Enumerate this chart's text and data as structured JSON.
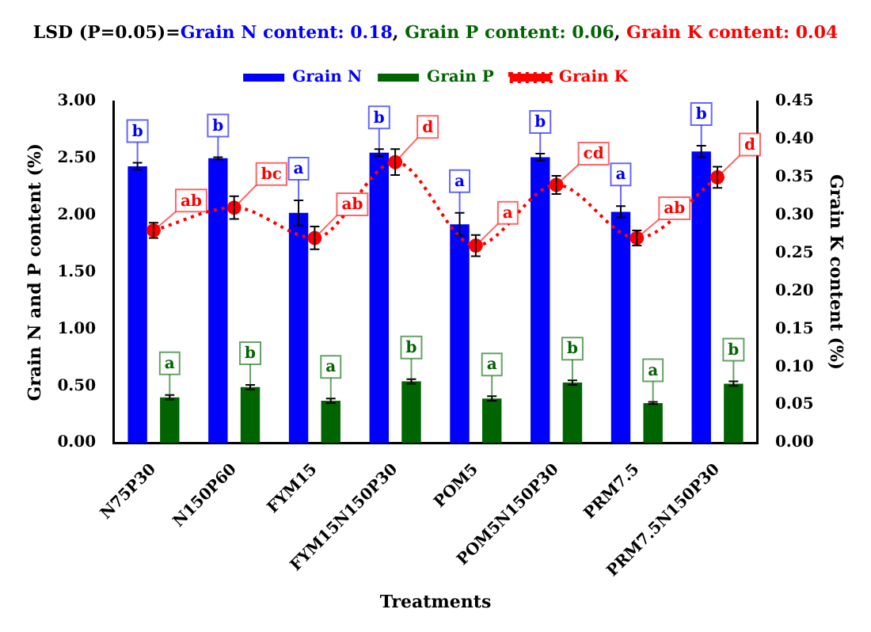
{
  "chart_data": {
    "type": "bar",
    "title": "LSD (P=0.05)=Grain N content: 0.18, Grain P content: 0.06, Grain K content: 0.04",
    "xlabel": "Treatments",
    "ylabel": "Grain N and P content (%)",
    "y2label": "Grain K content (%)",
    "categories": [
      "N75P30",
      "N150P60",
      "FYM15",
      "FYM15N150P30",
      "POM5",
      "POM5N150P30",
      "PRM7.5",
      "PRM7.5N150P30"
    ],
    "series": [
      {
        "name": "Grain N",
        "color": "#0000ff",
        "values": [
          2.43,
          2.5,
          2.02,
          2.55,
          1.92,
          2.51,
          2.03,
          2.56
        ],
        "errors": [
          0.03,
          0.01,
          0.11,
          0.03,
          0.1,
          0.03,
          0.05,
          0.05
        ],
        "value_labels": [
          "b",
          "b",
          "a",
          "b",
          "a",
          "b",
          "a",
          "b"
        ]
      },
      {
        "name": "Grain P",
        "color": "#006400",
        "values": [
          0.4,
          0.49,
          0.37,
          0.54,
          0.39,
          0.53,
          0.35,
          0.52
        ],
        "errors": [
          0.02,
          0.02,
          0.02,
          0.02,
          0.02,
          0.02,
          0.01,
          0.02
        ],
        "value_labels": [
          "a",
          "b",
          "a",
          "b",
          "a",
          "b",
          "a",
          "b"
        ]
      },
      {
        "name": "Grain K",
        "color": "#ff0000",
        "type": "line",
        "axis": "y2",
        "line_style": "dotted",
        "marker": "circle",
        "values": [
          0.28,
          0.31,
          0.27,
          0.37,
          0.26,
          0.34,
          0.27,
          0.35
        ],
        "errors": [
          0.01,
          0.015,
          0.015,
          0.017,
          0.014,
          0.012,
          0.01,
          0.014
        ],
        "value_labels": [
          "ab",
          "bc",
          "ab",
          "d",
          "a",
          "cd",
          "ab",
          "d"
        ]
      }
    ],
    "ylim": [
      0,
      3
    ],
    "yticks": [
      {
        "value": 0,
        "label": "0.00"
      },
      {
        "value": 0.5,
        "label": "0.50"
      },
      {
        "value": 1,
        "label": "1.00"
      },
      {
        "value": 1.5,
        "label": "1.50"
      },
      {
        "value": 2,
        "label": "2.00"
      },
      {
        "value": 2.5,
        "label": "2.50"
      },
      {
        "value": 3,
        "label": "3.00"
      }
    ],
    "y2lim": [
      0,
      0.45
    ],
    "y2ticks": [
      {
        "value": 0,
        "label": "0.00"
      },
      {
        "value": 0.05,
        "label": "0.05"
      },
      {
        "value": 0.1,
        "label": "0.10"
      },
      {
        "value": 0.15,
        "label": "0.15"
      },
      {
        "value": 0.2,
        "label": "0.20"
      },
      {
        "value": 0.25,
        "label": "0.25"
      },
      {
        "value": 0.3,
        "label": "0.30"
      },
      {
        "value": 0.35,
        "label": "0.35"
      },
      {
        "value": 0.4,
        "label": "0.40"
      },
      {
        "value": 0.45,
        "label": "0.45"
      }
    ],
    "grid": false,
    "legend": "top"
  }
}
